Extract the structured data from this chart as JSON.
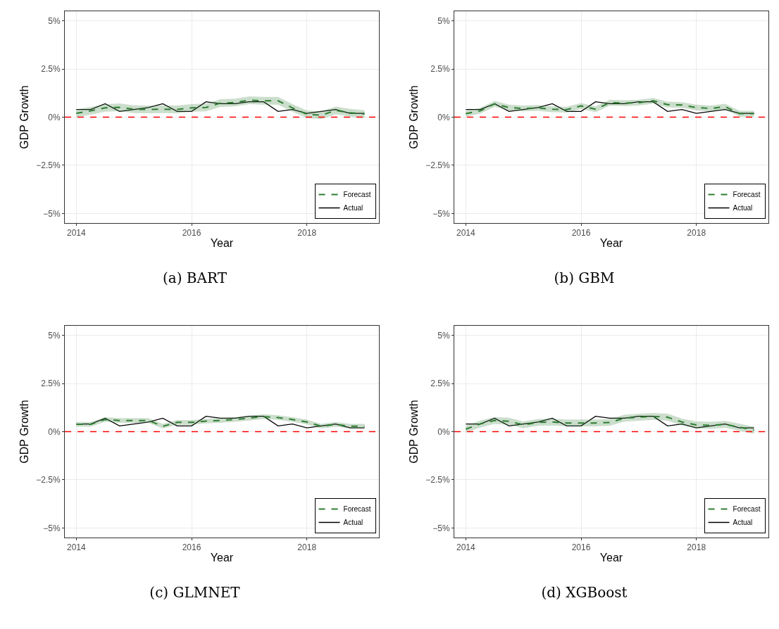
{
  "chart_data": [
    {
      "type": "line",
      "title": "(a) BART",
      "xlabel": "Year",
      "ylabel": "GDP Growth",
      "x": [
        2014,
        2014.25,
        2014.5,
        2014.75,
        2015,
        2015.25,
        2015.5,
        2015.75,
        2016,
        2016.25,
        2016.5,
        2016.75,
        2017,
        2017.25,
        2017.5,
        2017.75,
        2018,
        2018.25,
        2018.5,
        2018.75,
        2019
      ],
      "xlim": [
        2013.8,
        2019.25
      ],
      "xticks": [
        2014,
        2016,
        2018
      ],
      "ylim": [
        -5.5,
        5.5
      ],
      "yticks": [
        {
          "value": -5,
          "label": "−5%"
        },
        {
          "value": -2.5,
          "label": "−2.5%"
        },
        {
          "value": 0,
          "label": "0%"
        },
        {
          "value": 2.5,
          "label": "2.5%"
        },
        {
          "value": 5,
          "label": "5%"
        }
      ],
      "grid": true,
      "legend": "bottom right",
      "series": [
        {
          "name": "Actual",
          "color": "#000000",
          "line_style": "solid",
          "values": [
            0.4,
            0.4,
            0.7,
            0.3,
            0.4,
            0.5,
            0.7,
            0.3,
            0.3,
            0.8,
            0.7,
            0.7,
            0.8,
            0.8,
            0.3,
            0.4,
            0.2,
            0.3,
            0.4,
            0.2,
            0.2
          ]
        },
        {
          "name": "Forecast",
          "color": "#2e7d32",
          "line_style": "dashed",
          "values": [
            0.2,
            0.33,
            0.48,
            0.51,
            0.41,
            0.4,
            0.41,
            0.4,
            0.48,
            0.5,
            0.73,
            0.76,
            0.88,
            0.85,
            0.85,
            0.48,
            0.15,
            0.1,
            0.35,
            0.23,
            0.16
          ],
          "lower": [
            0.0,
            0.13,
            0.28,
            0.31,
            0.21,
            0.2,
            0.21,
            0.2,
            0.28,
            0.3,
            0.53,
            0.56,
            0.68,
            0.65,
            0.65,
            0.28,
            -0.05,
            -0.1,
            0.15,
            0.03,
            -0.04
          ],
          "upper": [
            0.4,
            0.53,
            0.68,
            0.71,
            0.61,
            0.6,
            0.61,
            0.6,
            0.68,
            0.7,
            0.93,
            0.96,
            1.08,
            1.05,
            1.05,
            0.68,
            0.35,
            0.3,
            0.55,
            0.43,
            0.36
          ]
        }
      ],
      "ref_lines": [
        {
          "axis": "y",
          "value": 0,
          "color": "#ff0000",
          "line_style": "dashed"
        }
      ]
    },
    {
      "type": "line",
      "title": "(b) GBM",
      "xlabel": "Year",
      "ylabel": "GDP Growth",
      "x": [
        2014,
        2014.25,
        2014.5,
        2014.75,
        2015,
        2015.25,
        2015.5,
        2015.75,
        2016,
        2016.25,
        2016.5,
        2016.75,
        2017,
        2017.25,
        2017.5,
        2017.75,
        2018,
        2018.25,
        2018.5,
        2018.75,
        2019
      ],
      "xlim": [
        2013.8,
        2019.25
      ],
      "xticks": [
        2014,
        2016,
        2018
      ],
      "ylim": [
        -5.5,
        5.5
      ],
      "yticks": [
        {
          "value": -5,
          "label": "−5%"
        },
        {
          "value": -2.5,
          "label": "−2.5%"
        },
        {
          "value": 0,
          "label": "0%"
        },
        {
          "value": 2.5,
          "label": "2.5%"
        },
        {
          "value": 5,
          "label": "5%"
        }
      ],
      "grid": true,
      "legend": "bottom right",
      "series": [
        {
          "name": "Actual",
          "color": "#000000",
          "line_style": "solid",
          "values": [
            0.4,
            0.4,
            0.7,
            0.3,
            0.4,
            0.5,
            0.7,
            0.3,
            0.3,
            0.8,
            0.7,
            0.7,
            0.8,
            0.8,
            0.3,
            0.4,
            0.2,
            0.3,
            0.4,
            0.2,
            0.2
          ]
        },
        {
          "name": "Forecast",
          "color": "#2e7d32",
          "line_style": "dashed",
          "values": [
            0.18,
            0.33,
            0.69,
            0.5,
            0.45,
            0.48,
            0.41,
            0.39,
            0.58,
            0.41,
            0.75,
            0.73,
            0.75,
            0.85,
            0.65,
            0.63,
            0.5,
            0.45,
            0.54,
            0.18,
            0.18
          ],
          "lower": [
            0.03,
            0.18,
            0.54,
            0.35,
            0.3,
            0.33,
            0.26,
            0.24,
            0.43,
            0.26,
            0.6,
            0.58,
            0.6,
            0.7,
            0.5,
            0.48,
            0.35,
            0.3,
            0.39,
            0.03,
            0.03
          ],
          "upper": [
            0.33,
            0.48,
            0.84,
            0.65,
            0.6,
            0.63,
            0.56,
            0.54,
            0.73,
            0.56,
            0.9,
            0.88,
            0.9,
            1.0,
            0.8,
            0.78,
            0.65,
            0.6,
            0.69,
            0.33,
            0.33
          ]
        }
      ],
      "ref_lines": [
        {
          "axis": "y",
          "value": 0,
          "color": "#ff0000",
          "line_style": "dashed"
        }
      ]
    },
    {
      "type": "line",
      "title": "(c) GLMNET",
      "xlabel": "Year",
      "ylabel": "GDP Growth",
      "x": [
        2014,
        2014.25,
        2014.5,
        2014.75,
        2015,
        2015.25,
        2015.5,
        2015.75,
        2016,
        2016.25,
        2016.5,
        2016.75,
        2017,
        2017.25,
        2017.5,
        2017.75,
        2018,
        2018.25,
        2018.5,
        2018.75,
        2019
      ],
      "xlim": [
        2013.8,
        2019.25
      ],
      "xticks": [
        2014,
        2016,
        2018
      ],
      "ylim": [
        -5.5,
        5.5
      ],
      "yticks": [
        {
          "value": -5,
          "label": "−5%"
        },
        {
          "value": -2.5,
          "label": "−2.5%"
        },
        {
          "value": 0,
          "label": "0%"
        },
        {
          "value": 2.5,
          "label": "2.5%"
        },
        {
          "value": 5,
          "label": "5%"
        }
      ],
      "grid": true,
      "legend": "bottom right",
      "series": [
        {
          "name": "Actual",
          "color": "#000000",
          "line_style": "solid",
          "values": [
            0.4,
            0.4,
            0.7,
            0.3,
            0.4,
            0.5,
            0.7,
            0.3,
            0.3,
            0.8,
            0.7,
            0.7,
            0.8,
            0.8,
            0.3,
            0.4,
            0.2,
            0.3,
            0.4,
            0.2,
            0.2
          ]
        },
        {
          "name": "Forecast",
          "color": "#2e7d32",
          "line_style": "dashed",
          "values": [
            0.38,
            0.38,
            0.63,
            0.58,
            0.58,
            0.58,
            0.28,
            0.48,
            0.48,
            0.55,
            0.58,
            0.63,
            0.7,
            0.78,
            0.73,
            0.63,
            0.5,
            0.28,
            0.38,
            0.28,
            0.28
          ],
          "lower": [
            0.26,
            0.26,
            0.51,
            0.46,
            0.46,
            0.46,
            0.16,
            0.36,
            0.36,
            0.43,
            0.46,
            0.51,
            0.58,
            0.66,
            0.61,
            0.51,
            0.38,
            0.16,
            0.26,
            0.16,
            0.16
          ],
          "upper": [
            0.5,
            0.5,
            0.75,
            0.7,
            0.7,
            0.7,
            0.4,
            0.6,
            0.6,
            0.67,
            0.7,
            0.75,
            0.82,
            0.9,
            0.85,
            0.75,
            0.62,
            0.4,
            0.5,
            0.4,
            0.4
          ]
        }
      ],
      "ref_lines": [
        {
          "axis": "y",
          "value": 0,
          "color": "#ff0000",
          "line_style": "dashed"
        }
      ]
    },
    {
      "type": "line",
      "title": "(d) XGBoost",
      "xlabel": "Year",
      "ylabel": "GDP Growth",
      "x": [
        2014,
        2014.25,
        2014.5,
        2014.75,
        2015,
        2015.25,
        2015.5,
        2015.75,
        2016,
        2016.25,
        2016.5,
        2016.75,
        2017,
        2017.25,
        2017.5,
        2017.75,
        2018,
        2018.25,
        2018.5,
        2018.75,
        2019
      ],
      "xlim": [
        2013.8,
        2019.25
      ],
      "xticks": [
        2014,
        2016,
        2018
      ],
      "ylim": [
        -5.5,
        5.5
      ],
      "yticks": [
        {
          "value": -5,
          "label": "−5%"
        },
        {
          "value": -2.5,
          "label": "−2.5%"
        },
        {
          "value": 0,
          "label": "0%"
        },
        {
          "value": 2.5,
          "label": "2.5%"
        },
        {
          "value": 5,
          "label": "5%"
        }
      ],
      "grid": true,
      "legend": "bottom right",
      "series": [
        {
          "name": "Actual",
          "color": "#000000",
          "line_style": "solid",
          "values": [
            0.4,
            0.4,
            0.7,
            0.3,
            0.4,
            0.5,
            0.7,
            0.3,
            0.3,
            0.8,
            0.7,
            0.7,
            0.8,
            0.8,
            0.3,
            0.4,
            0.2,
            0.3,
            0.4,
            0.2,
            0.2
          ]
        },
        {
          "name": "Forecast",
          "color": "#2e7d32",
          "line_style": "dashed",
          "values": [
            0.13,
            0.4,
            0.58,
            0.54,
            0.35,
            0.48,
            0.5,
            0.45,
            0.45,
            0.45,
            0.48,
            0.7,
            0.75,
            0.79,
            0.75,
            0.5,
            0.35,
            0.33,
            0.38,
            0.23,
            0.08
          ],
          "lower": [
            -0.05,
            0.22,
            0.4,
            0.36,
            0.17,
            0.3,
            0.32,
            0.27,
            0.27,
            0.27,
            0.3,
            0.52,
            0.57,
            0.61,
            0.57,
            0.32,
            0.17,
            0.15,
            0.2,
            0.05,
            -0.1
          ],
          "upper": [
            0.31,
            0.58,
            0.76,
            0.72,
            0.53,
            0.66,
            0.68,
            0.63,
            0.63,
            0.63,
            0.66,
            0.88,
            0.93,
            0.97,
            0.93,
            0.68,
            0.53,
            0.51,
            0.56,
            0.41,
            0.26
          ]
        }
      ],
      "ref_lines": [
        {
          "axis": "y",
          "value": 0,
          "color": "#ff0000",
          "line_style": "dashed"
        }
      ]
    }
  ]
}
